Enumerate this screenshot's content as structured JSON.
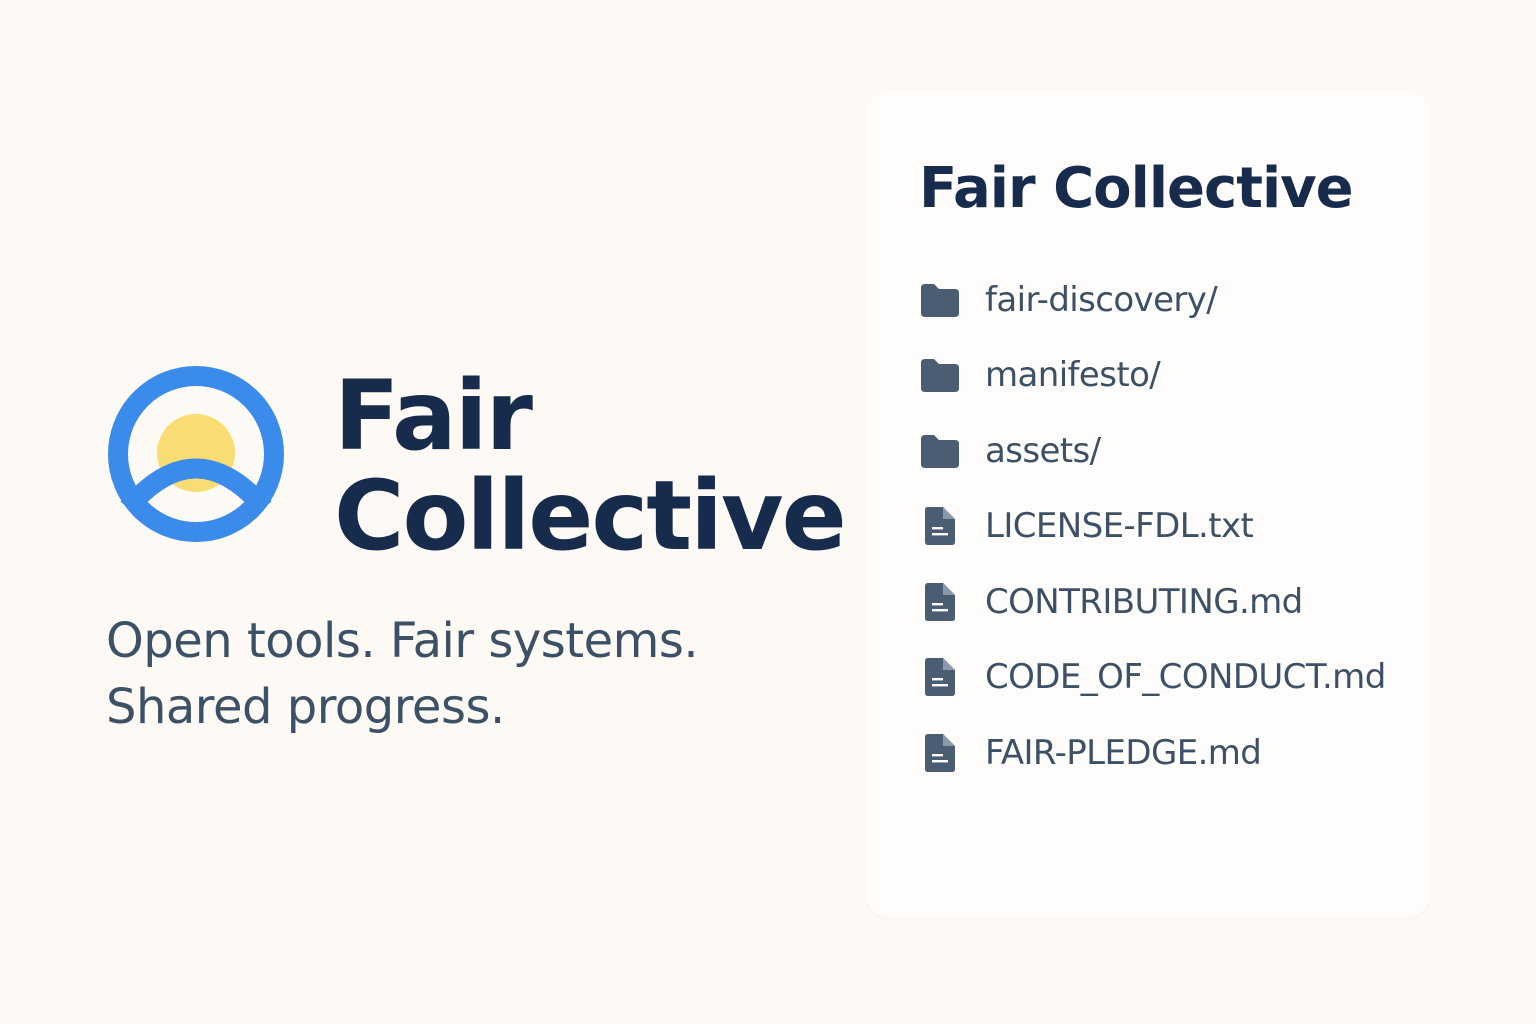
{
  "brand": {
    "name_line1": "Fair",
    "name_line2": "Collective",
    "tagline_line1": "Open tools. Fair systems.",
    "tagline_line2": "Shared progress.",
    "logo_icon": "sunrise-ring-logo",
    "colors": {
      "ring": "#3b8beb",
      "sun": "#f9dc72",
      "text": "#172b4d"
    }
  },
  "panel": {
    "title": "Fair Collective",
    "items": [
      {
        "label": "fair-discovery/",
        "kind": "folder",
        "icon": "folder-icon"
      },
      {
        "label": "manifesto/",
        "kind": "folder",
        "icon": "folder-icon"
      },
      {
        "label": "assets/",
        "kind": "folder",
        "icon": "folder-icon"
      },
      {
        "label": "LICENSE-FDL.txt",
        "kind": "file",
        "icon": "file-icon"
      },
      {
        "label": "CONTRIBUTING.md",
        "kind": "file",
        "icon": "file-icon"
      },
      {
        "label": "CODE_OF_CONDUCT.md",
        "kind": "file",
        "icon": "file-icon"
      },
      {
        "label": "FAIR-PLEDGE.md",
        "kind": "file",
        "icon": "file-icon"
      }
    ]
  }
}
